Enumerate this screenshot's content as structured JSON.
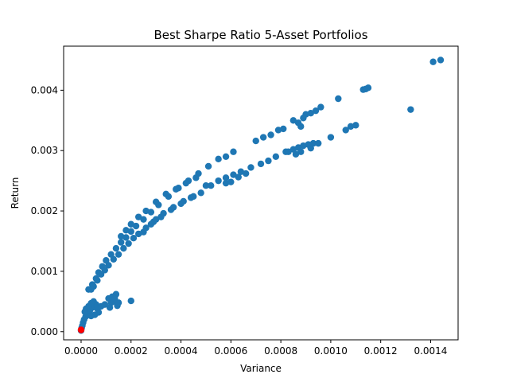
{
  "chart_data": {
    "type": "scatter",
    "title": "Best Sharpe Ratio 5-Asset Portfolios",
    "xlabel": "Variance",
    "ylabel": "Return",
    "xlim": [
      -7e-05,
      0.00151
    ],
    "ylim": [
      -0.000135,
      0.00473
    ],
    "xticks": [
      0.0,
      0.0002,
      0.0004,
      0.0006,
      0.0008,
      0.001,
      0.0012,
      0.0014
    ],
    "xtick_labels": [
      "0.0000",
      "0.0002",
      "0.0004",
      "0.0006",
      "0.0008",
      "0.0010",
      "0.0012",
      "0.0014"
    ],
    "yticks": [
      0.0,
      0.001,
      0.002,
      0.003,
      0.004
    ],
    "ytick_labels": [
      "0.000",
      "0.001",
      "0.002",
      "0.003",
      "0.004"
    ],
    "grid": false,
    "colors": {
      "portfolios": "#1f77b4",
      "best": "#ff0000"
    },
    "series": [
      {
        "values": [
          [
            0.0,
            2e-05
          ],
          [
            2e-06,
            6e-05
          ],
          [
            5e-06,
            0.0001
          ],
          [
            8e-06,
            0.00015
          ],
          [
            1.2e-05,
            0.0002
          ],
          [
            1.8e-05,
            0.00025
          ],
          [
            2.5e-05,
            0.0003
          ],
          [
            3.5e-05,
            0.00035
          ],
          [
            4.5e-05,
            0.0004
          ],
          [
            6e-05,
            0.00045
          ],
          [
            5e-05,
            0.0005
          ],
          [
            4e-05,
            0.00047
          ],
          [
            3e-05,
            0.00042
          ],
          [
            2e-05,
            0.00038
          ],
          [
            1.5e-05,
            0.00033
          ],
          [
            6.5e-05,
            0.00038
          ],
          [
            8e-05,
            0.00042
          ],
          [
            7e-05,
            0.00032
          ],
          [
            5.5e-05,
            0.00028
          ],
          [
            4e-05,
            0.00026
          ],
          [
            9.5e-05,
            0.00045
          ],
          [
            0.00011,
            0.00055
          ],
          [
            0.00012,
            0.00048
          ],
          [
            0.00013,
            0.0005
          ],
          [
            0.00014,
            0.00062
          ],
          [
            0.000145,
            0.00043
          ],
          [
            0.00015,
            0.00048
          ],
          [
            0.000115,
            0.0004
          ],
          [
            0.000125,
            0.00058
          ],
          [
            0.000135,
            0.00055
          ],
          [
            0.0002,
            0.00051
          ],
          [
            3e-05,
            0.0007
          ],
          [
            4.5e-05,
            0.00078
          ],
          [
            6e-05,
            0.00088
          ],
          [
            7e-05,
            0.00098
          ],
          [
            8.5e-05,
            0.00108
          ],
          [
            0.0001,
            0.00118
          ],
          [
            0.00012,
            0.00128
          ],
          [
            0.00014,
            0.00138
          ],
          [
            0.00016,
            0.00148
          ],
          [
            0.00018,
            0.00156
          ],
          [
            0.0002,
            0.00166
          ],
          [
            0.00022,
            0.00175
          ],
          [
            0.00025,
            0.00186
          ],
          [
            0.00028,
            0.00198
          ],
          [
            0.00031,
            0.0021
          ],
          [
            0.00035,
            0.00224
          ],
          [
            0.00039,
            0.00238
          ],
          [
            0.00043,
            0.0025
          ],
          [
            0.00047,
            0.00262
          ],
          [
            0.00051,
            0.00274
          ],
          [
            0.00055,
            0.00286
          ],
          [
            0.00058,
            0.0029
          ],
          [
            0.00061,
            0.00298
          ],
          [
            4e-05,
            0.0007
          ],
          [
            5e-05,
            0.00075
          ],
          [
            6.5e-05,
            0.00085
          ],
          [
            8e-05,
            0.00095
          ],
          [
            9.5e-05,
            0.00102
          ],
          [
            0.00011,
            0.0011
          ],
          [
            0.00013,
            0.0012
          ],
          [
            0.00015,
            0.00128
          ],
          [
            0.00017,
            0.00138
          ],
          [
            0.00019,
            0.00146
          ],
          [
            0.00021,
            0.00155
          ],
          [
            0.00023,
            0.00162
          ],
          [
            0.00026,
            0.00172
          ],
          [
            0.00029,
            0.00182
          ],
          [
            0.00032,
            0.0019
          ],
          [
            0.00036,
            0.00202
          ],
          [
            0.0004,
            0.00212
          ],
          [
            0.00044,
            0.00222
          ],
          [
            0.00048,
            0.0023
          ],
          [
            0.00016,
            0.00158
          ],
          [
            0.00018,
            0.00168
          ],
          [
            0.0002,
            0.00178
          ],
          [
            0.00023,
            0.0019
          ],
          [
            0.00026,
            0.002
          ],
          [
            0.0003,
            0.00215
          ],
          [
            0.00034,
            0.00228
          ],
          [
            0.00038,
            0.00236
          ],
          [
            0.00042,
            0.00246
          ],
          [
            0.00046,
            0.00255
          ],
          [
            0.00025,
            0.00165
          ],
          [
            0.00028,
            0.00178
          ],
          [
            0.0003,
            0.00186
          ],
          [
            0.00033,
            0.00196
          ],
          [
            0.00037,
            0.00206
          ],
          [
            0.00041,
            0.00216
          ],
          [
            0.00045,
            0.00224
          ],
          [
            0.0005,
            0.00242
          ],
          [
            0.00052,
            0.00242
          ],
          [
            0.00055,
            0.0025
          ],
          [
            0.00058,
            0.00255
          ],
          [
            0.00061,
            0.0026
          ],
          [
            0.00064,
            0.00265
          ],
          [
            0.00068,
            0.00272
          ],
          [
            0.00072,
            0.00278
          ],
          [
            0.00075,
            0.00283
          ],
          [
            0.00078,
            0.0029
          ],
          [
            0.00082,
            0.00298
          ],
          [
            0.00085,
            0.00302
          ],
          [
            0.00087,
            0.00305
          ],
          [
            0.00089,
            0.00308
          ],
          [
            0.00091,
            0.0031
          ],
          [
            0.00093,
            0.00312
          ],
          [
            0.00095,
            0.00312
          ],
          [
            0.00092,
            0.00304
          ],
          [
            0.00088,
            0.00298
          ],
          [
            0.00086,
            0.00294
          ],
          [
            0.00083,
            0.00298
          ],
          [
            0.00058,
            0.00246
          ],
          [
            0.0006,
            0.00248
          ],
          [
            0.00063,
            0.00256
          ],
          [
            0.00066,
            0.00262
          ],
          [
            0.0007,
            0.00316
          ],
          [
            0.00073,
            0.00322
          ],
          [
            0.00076,
            0.00326
          ],
          [
            0.00079,
            0.00334
          ],
          [
            0.00081,
            0.00336
          ],
          [
            0.00085,
            0.0035
          ],
          [
            0.00087,
            0.00346
          ],
          [
            0.0009,
            0.0036
          ],
          [
            0.00092,
            0.00362
          ],
          [
            0.00094,
            0.00366
          ],
          [
            0.00096,
            0.00372
          ],
          [
            0.00089,
            0.00354
          ],
          [
            0.00088,
            0.0034
          ],
          [
            0.001,
            0.00322
          ],
          [
            0.00103,
            0.00386
          ],
          [
            0.00106,
            0.00334
          ],
          [
            0.00108,
            0.0034
          ],
          [
            0.0011,
            0.00342
          ],
          [
            0.00113,
            0.00401
          ],
          [
            0.00114,
            0.00402
          ],
          [
            0.00115,
            0.00404
          ],
          [
            0.00132,
            0.00368
          ],
          [
            0.00141,
            0.00447
          ],
          [
            0.00144,
            0.0045
          ]
        ]
      }
    ],
    "highlight": {
      "x": 0.0,
      "y": 3e-05
    }
  }
}
